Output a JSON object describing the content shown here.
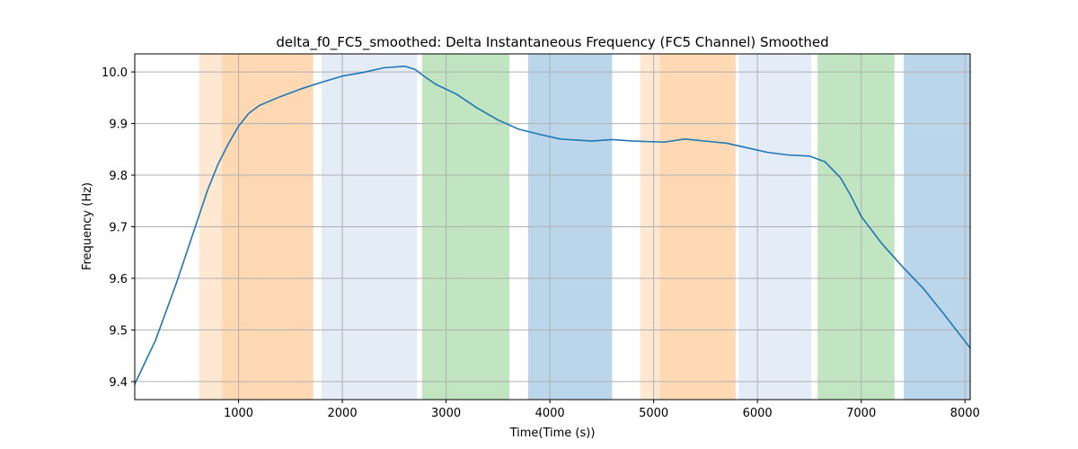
{
  "chart_data": {
    "type": "line",
    "title": "delta_f0_FC5_smoothed: Delta Instantaneous Frequency (FC5 Channel) Smoothed",
    "xlabel": "Time(Time (s))",
    "ylabel": "Frequency (Hz)",
    "xlim": [
      0,
      8050
    ],
    "ylim": [
      9.365,
      10.035
    ],
    "xticks": [
      1000,
      2000,
      3000,
      4000,
      5000,
      6000,
      7000,
      8000
    ],
    "yticks": [
      9.4,
      9.5,
      9.6,
      9.7,
      9.8,
      9.9,
      10.0
    ],
    "ytick_labels": [
      "9.4",
      "9.5",
      "9.6",
      "9.7",
      "9.8",
      "9.9",
      "10.0"
    ],
    "grid": true,
    "series": [
      {
        "color": "#1f77b4",
        "points": [
          [
            0,
            9.395
          ],
          [
            200,
            9.48
          ],
          [
            400,
            9.59
          ],
          [
            600,
            9.71
          ],
          [
            700,
            9.77
          ],
          [
            800,
            9.82
          ],
          [
            900,
            9.86
          ],
          [
            1000,
            9.895
          ],
          [
            1100,
            9.92
          ],
          [
            1200,
            9.935
          ],
          [
            1400,
            9.952
          ],
          [
            1600,
            9.967
          ],
          [
            1800,
            9.98
          ],
          [
            2000,
            9.992
          ],
          [
            2200,
            9.999
          ],
          [
            2400,
            10.008
          ],
          [
            2600,
            10.011
          ],
          [
            2700,
            10.005
          ],
          [
            2800,
            9.99
          ],
          [
            2900,
            9.976
          ],
          [
            3100,
            9.957
          ],
          [
            3300,
            9.93
          ],
          [
            3500,
            9.907
          ],
          [
            3700,
            9.889
          ],
          [
            3900,
            9.879
          ],
          [
            4100,
            9.87
          ],
          [
            4400,
            9.866
          ],
          [
            4600,
            9.869
          ],
          [
            4800,
            9.866
          ],
          [
            5100,
            9.864
          ],
          [
            5300,
            9.87
          ],
          [
            5500,
            9.866
          ],
          [
            5700,
            9.862
          ],
          [
            5900,
            9.853
          ],
          [
            6100,
            9.844
          ],
          [
            6300,
            9.839
          ],
          [
            6500,
            9.837
          ],
          [
            6650,
            9.826
          ],
          [
            6800,
            9.795
          ],
          [
            6900,
            9.76
          ],
          [
            7000,
            9.72
          ],
          [
            7200,
            9.667
          ],
          [
            7400,
            9.622
          ],
          [
            7600,
            9.58
          ],
          [
            7800,
            9.53
          ],
          [
            8050,
            9.465
          ]
        ]
      }
    ],
    "bands": [
      {
        "start": 620,
        "end": 840,
        "color": "#ffe8d2"
      },
      {
        "start": 840,
        "end": 1720,
        "color": "#ffd8b4"
      },
      {
        "start": 1800,
        "end": 2720,
        "color": "#e4ecf7"
      },
      {
        "start": 2770,
        "end": 3610,
        "color": "#c1e4c1"
      },
      {
        "start": 3790,
        "end": 4600,
        "color": "#bbd6ea"
      },
      {
        "start": 4870,
        "end": 5060,
        "color": "#ffe8d2"
      },
      {
        "start": 5060,
        "end": 5790,
        "color": "#ffd8b4"
      },
      {
        "start": 5820,
        "end": 6520,
        "color": "#e4ecf7"
      },
      {
        "start": 6580,
        "end": 7320,
        "color": "#c1e4c1"
      },
      {
        "start": 7410,
        "end": 8050,
        "color": "#bbd6ea"
      }
    ]
  }
}
